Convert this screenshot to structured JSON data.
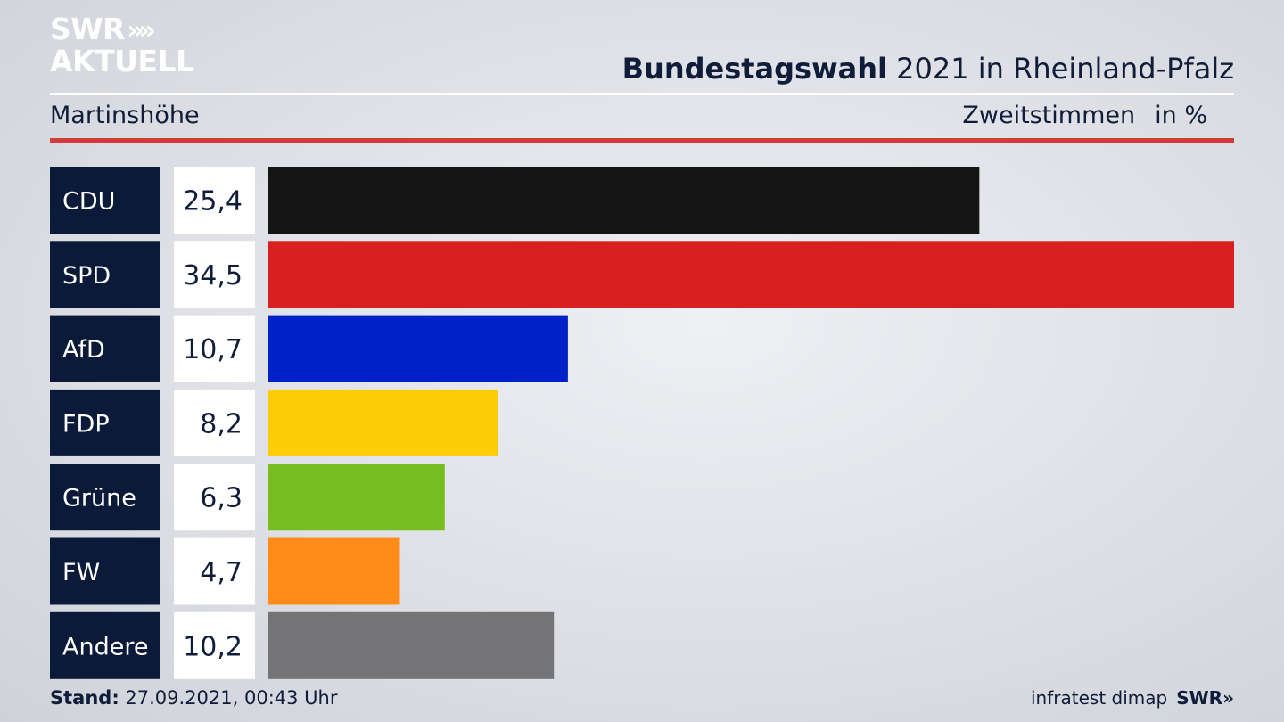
{
  "header": {
    "logo_line1": "SWR",
    "logo_chevrons": "»",
    "logo_line2": "AKTUELL",
    "title_bold": "Bundestagswahl",
    "title_rest": " 2021 in Rheinland-Pfalz",
    "location": "Martinshöhe",
    "metric": "Zweitstimmen",
    "unit": "in %"
  },
  "footer": {
    "stand_label": "Stand:",
    "stand_value": " 27.09.2021, 00:43 Uhr",
    "source": "infratest dimap",
    "brand": "SWR»"
  },
  "chart_data": {
    "type": "bar",
    "orientation": "horizontal",
    "categories": [
      "CDU",
      "SPD",
      "AfD",
      "FDP",
      "Grüne",
      "FW",
      "Andere"
    ],
    "values": [
      25.4,
      34.5,
      10.7,
      8.2,
      6.3,
      4.7,
      10.2
    ],
    "value_labels": [
      "25,4",
      "34,5",
      "10,7",
      "8,2",
      "6,3",
      "4,7",
      "10,2"
    ],
    "colors": [
      "#141414",
      "#d82020",
      "#0020c8",
      "#ffcc0a",
      "#78bd1f",
      "#ff8c19",
      "#747476"
    ],
    "xlim": [
      0,
      34.5
    ],
    "grid": false,
    "legend": "none"
  },
  "colors": {
    "label_box": "#0c1a3a",
    "value_box": "#ffffff",
    "accent_red": "#d43a3a"
  }
}
